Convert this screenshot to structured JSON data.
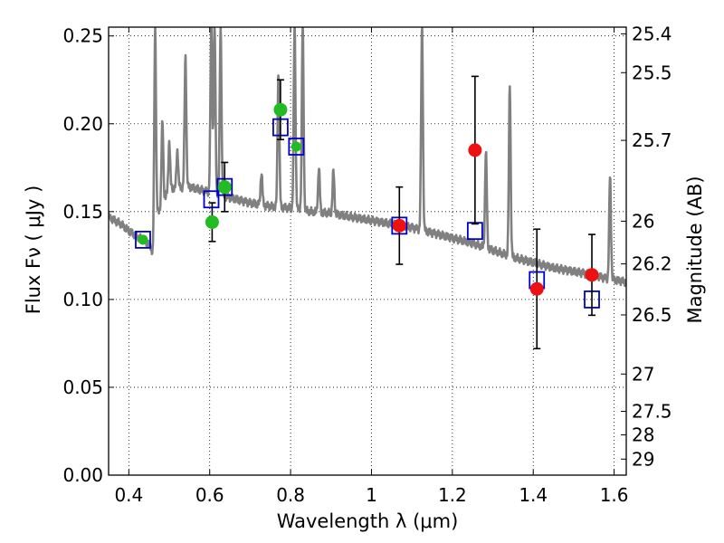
{
  "chart_data": {
    "type": "scatter",
    "xlabel": "Wavelength  λ (μm)",
    "ylabel": "Flux  Fν  ( μJy )",
    "y2label": "Magnitude (AB)",
    "xlim": [
      0.35,
      1.63
    ],
    "ylim": [
      0.0,
      0.255
    ],
    "grid": true,
    "x_ticks": [
      0.4,
      0.6,
      0.8,
      1.0,
      1.2,
      1.4,
      1.6
    ],
    "x_tick_labels": [
      "0.4",
      "0.6",
      "0.8",
      "1",
      "1.2",
      "1.4",
      "1.6"
    ],
    "y_ticks": [
      0.0,
      0.05,
      0.1,
      0.15,
      0.2,
      0.25
    ],
    "y_tick_labels": [
      "0.00",
      "0.05",
      "0.10",
      "0.15",
      "0.20",
      "0.25"
    ],
    "mag_ticks": [
      25.4,
      25.5,
      25.7,
      26,
      26.2,
      26.5,
      27,
      27.5,
      28,
      29
    ],
    "mag_tick_labels": [
      "25.4",
      "25.5",
      "25.7",
      "26",
      "26.2",
      "26.5",
      "27",
      "27.5",
      "28",
      "29"
    ],
    "series": [
      {
        "kind": "model_spectrum",
        "color": "#808080",
        "continuum": [
          [
            0.35,
            0.147
          ],
          [
            0.38,
            0.143
          ],
          [
            0.4,
            0.139
          ],
          [
            0.42,
            0.136
          ],
          [
            0.44,
            0.133
          ],
          [
            0.455,
            0.13
          ],
          [
            0.46,
            0.124
          ],
          [
            0.465,
            0.14
          ],
          [
            0.47,
            0.148
          ],
          [
            0.5,
            0.163
          ],
          [
            0.55,
            0.164
          ],
          [
            0.6,
            0.161
          ],
          [
            0.65,
            0.158
          ],
          [
            0.7,
            0.155
          ],
          [
            0.75,
            0.153
          ],
          [
            0.8,
            0.152
          ],
          [
            0.85,
            0.15
          ],
          [
            0.9,
            0.149
          ],
          [
            0.95,
            0.147
          ],
          [
            1.0,
            0.145
          ],
          [
            1.05,
            0.143
          ],
          [
            1.1,
            0.141
          ],
          [
            1.15,
            0.138
          ],
          [
            1.2,
            0.135
          ],
          [
            1.25,
            0.132
          ],
          [
            1.3,
            0.128
          ],
          [
            1.35,
            0.124
          ],
          [
            1.4,
            0.121
          ],
          [
            1.45,
            0.118
          ],
          [
            1.5,
            0.116
          ],
          [
            1.55,
            0.114
          ],
          [
            1.58,
            0.112
          ],
          [
            1.63,
            0.11
          ]
        ],
        "emission_lines": [
          {
            "x": 0.465,
            "peak": 0.255
          },
          {
            "x": 0.483,
            "peak": 0.2
          },
          {
            "x": 0.5,
            "peak": 0.19
          },
          {
            "x": 0.52,
            "peak": 0.185
          },
          {
            "x": 0.54,
            "peak": 0.238
          },
          {
            "x": 0.604,
            "peak": 0.255
          },
          {
            "x": 0.612,
            "peak": 0.255
          },
          {
            "x": 0.627,
            "peak": 0.255
          },
          {
            "x": 0.728,
            "peak": 0.172
          },
          {
            "x": 0.77,
            "peak": 0.228
          },
          {
            "x": 0.81,
            "peak": 0.255
          },
          {
            "x": 0.83,
            "peak": 0.255
          },
          {
            "x": 0.87,
            "peak": 0.175
          },
          {
            "x": 0.906,
            "peak": 0.173
          },
          {
            "x": 1.125,
            "peak": 0.255
          },
          {
            "x": 1.283,
            "peak": 0.183
          },
          {
            "x": 1.342,
            "peak": 0.222
          },
          {
            "x": 1.59,
            "peak": 0.17
          }
        ]
      },
      {
        "kind": "model_photometry",
        "marker": "open-square",
        "color": "#0000cc",
        "points": [
          {
            "x": 0.435,
            "y": 0.134
          },
          {
            "x": 0.604,
            "y": 0.157
          },
          {
            "x": 0.637,
            "y": 0.164
          },
          {
            "x": 0.775,
            "y": 0.198
          },
          {
            "x": 0.814,
            "y": 0.187
          },
          {
            "x": 1.069,
            "y": 0.142
          },
          {
            "x": 1.256,
            "y": 0.139
          },
          {
            "x": 1.409,
            "y": 0.111
          },
          {
            "x": 1.545,
            "y": 0.1
          }
        ]
      },
      {
        "kind": "observed_optical",
        "marker": "circle",
        "color": "#22bb22",
        "points": [
          {
            "x": 0.435,
            "y": 0.134,
            "err": 0.0
          },
          {
            "x": 0.606,
            "y": 0.144,
            "err": 0.011
          },
          {
            "x": 0.637,
            "y": 0.164,
            "err": 0.014
          },
          {
            "x": 0.775,
            "y": 0.208,
            "err": 0.017
          },
          {
            "x": 0.814,
            "y": 0.187,
            "err": 0.0
          }
        ]
      },
      {
        "kind": "observed_nir",
        "marker": "circle",
        "color": "#ee1111",
        "points": [
          {
            "x": 1.069,
            "y": 0.142,
            "err": 0.022
          },
          {
            "x": 1.256,
            "y": 0.185,
            "err": 0.042
          },
          {
            "x": 1.409,
            "y": 0.106,
            "err": 0.034
          },
          {
            "x": 1.545,
            "y": 0.114,
            "err": 0.023
          }
        ]
      }
    ]
  }
}
